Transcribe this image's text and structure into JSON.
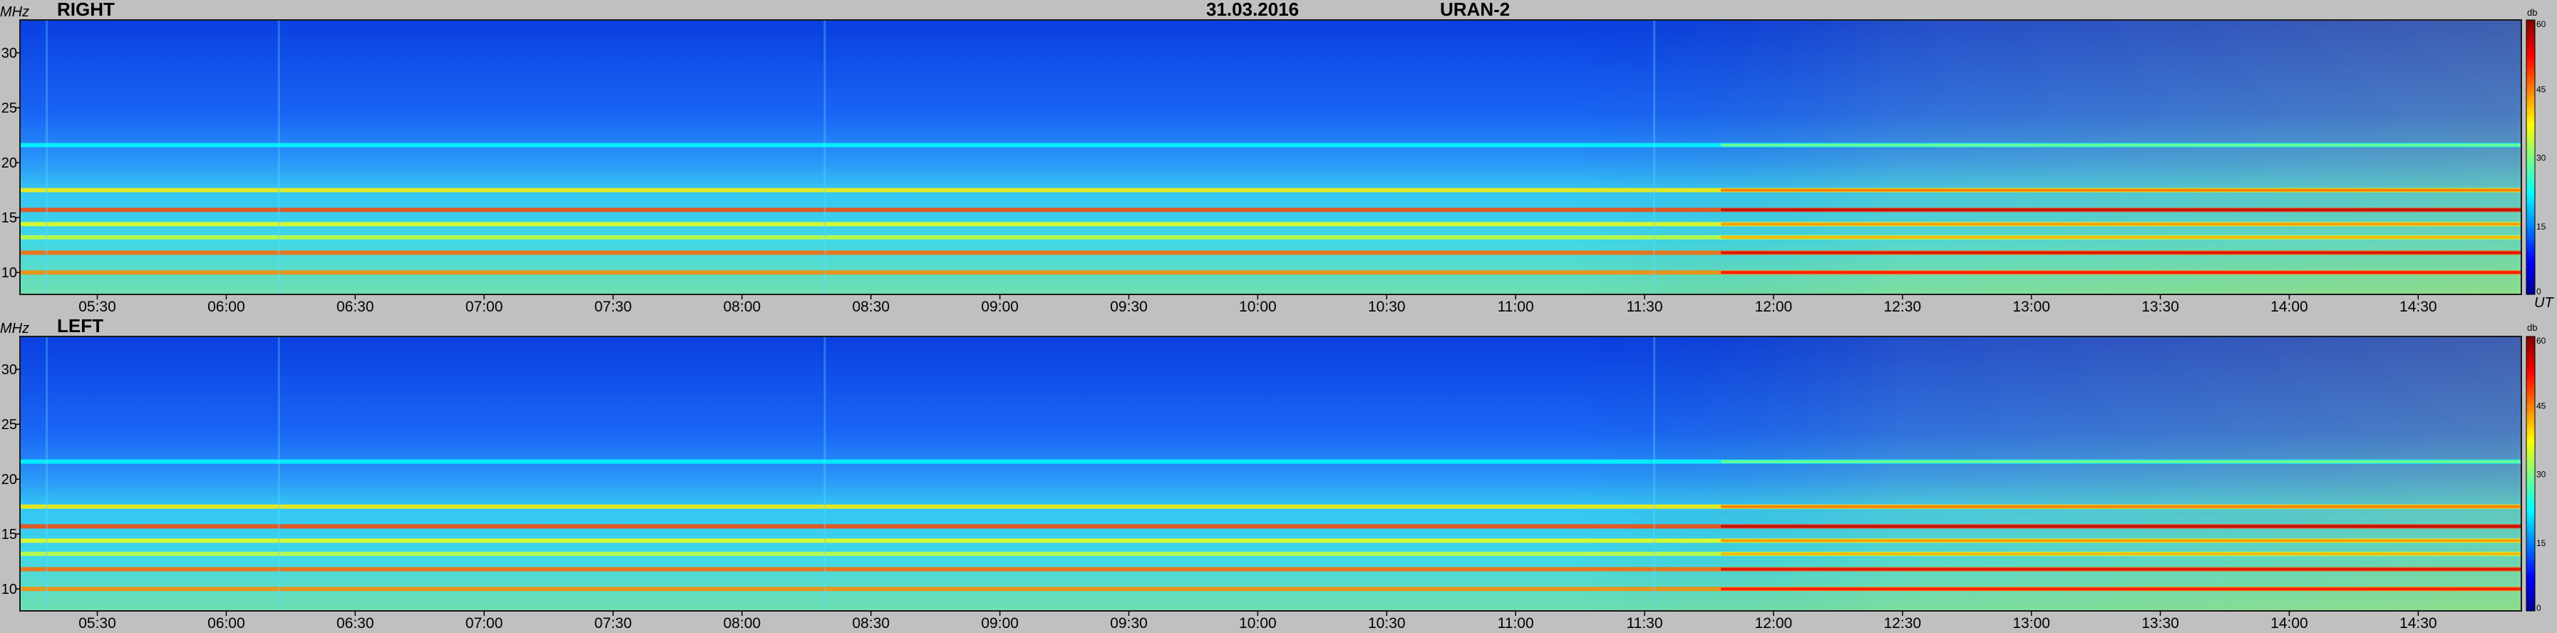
{
  "header": {
    "date": "31.03.2016",
    "instrument": "URAN-2"
  },
  "axes": {
    "y_unit": "MHz",
    "x_unit": "UT",
    "colorbar_unit": "db"
  },
  "panels": [
    {
      "label": "RIGHT"
    },
    {
      "label": "LEFT"
    }
  ],
  "chart_data": {
    "type": "heatmap",
    "title": "31.03.2016",
    "subtitle": "URAN-2",
    "xlabel": "UT",
    "ylabel": "MHz",
    "x_ticks": [
      "05:30",
      "06:00",
      "06:30",
      "07:00",
      "07:30",
      "08:00",
      "08:30",
      "09:00",
      "09:30",
      "10:00",
      "10:30",
      "11:00",
      "11:30",
      "12:00",
      "12:30",
      "13:00",
      "13:30",
      "14:00",
      "14:30"
    ],
    "x_range": [
      "05:12",
      "14:54"
    ],
    "y_ticks": [
      10,
      15,
      20,
      25,
      30
    ],
    "y_range": [
      8,
      33
    ],
    "colorbar": {
      "label": "db",
      "ticks": [
        0,
        15,
        30,
        45,
        60
      ],
      "range": [
        0,
        60
      ]
    },
    "panels": [
      "RIGHT",
      "LEFT"
    ],
    "features": [
      {
        "freq_mhz": 17.5,
        "level_db": 38
      },
      {
        "freq_mhz": 15.7,
        "level_db": 48
      },
      {
        "freq_mhz": 14.4,
        "level_db": 36
      },
      {
        "freq_mhz": 13.2,
        "level_db": 34
      },
      {
        "freq_mhz": 11.8,
        "level_db": 46
      },
      {
        "freq_mhz": 10.0,
        "level_db": 44
      },
      {
        "freq_mhz": 21.6,
        "level_db": 22
      }
    ]
  }
}
